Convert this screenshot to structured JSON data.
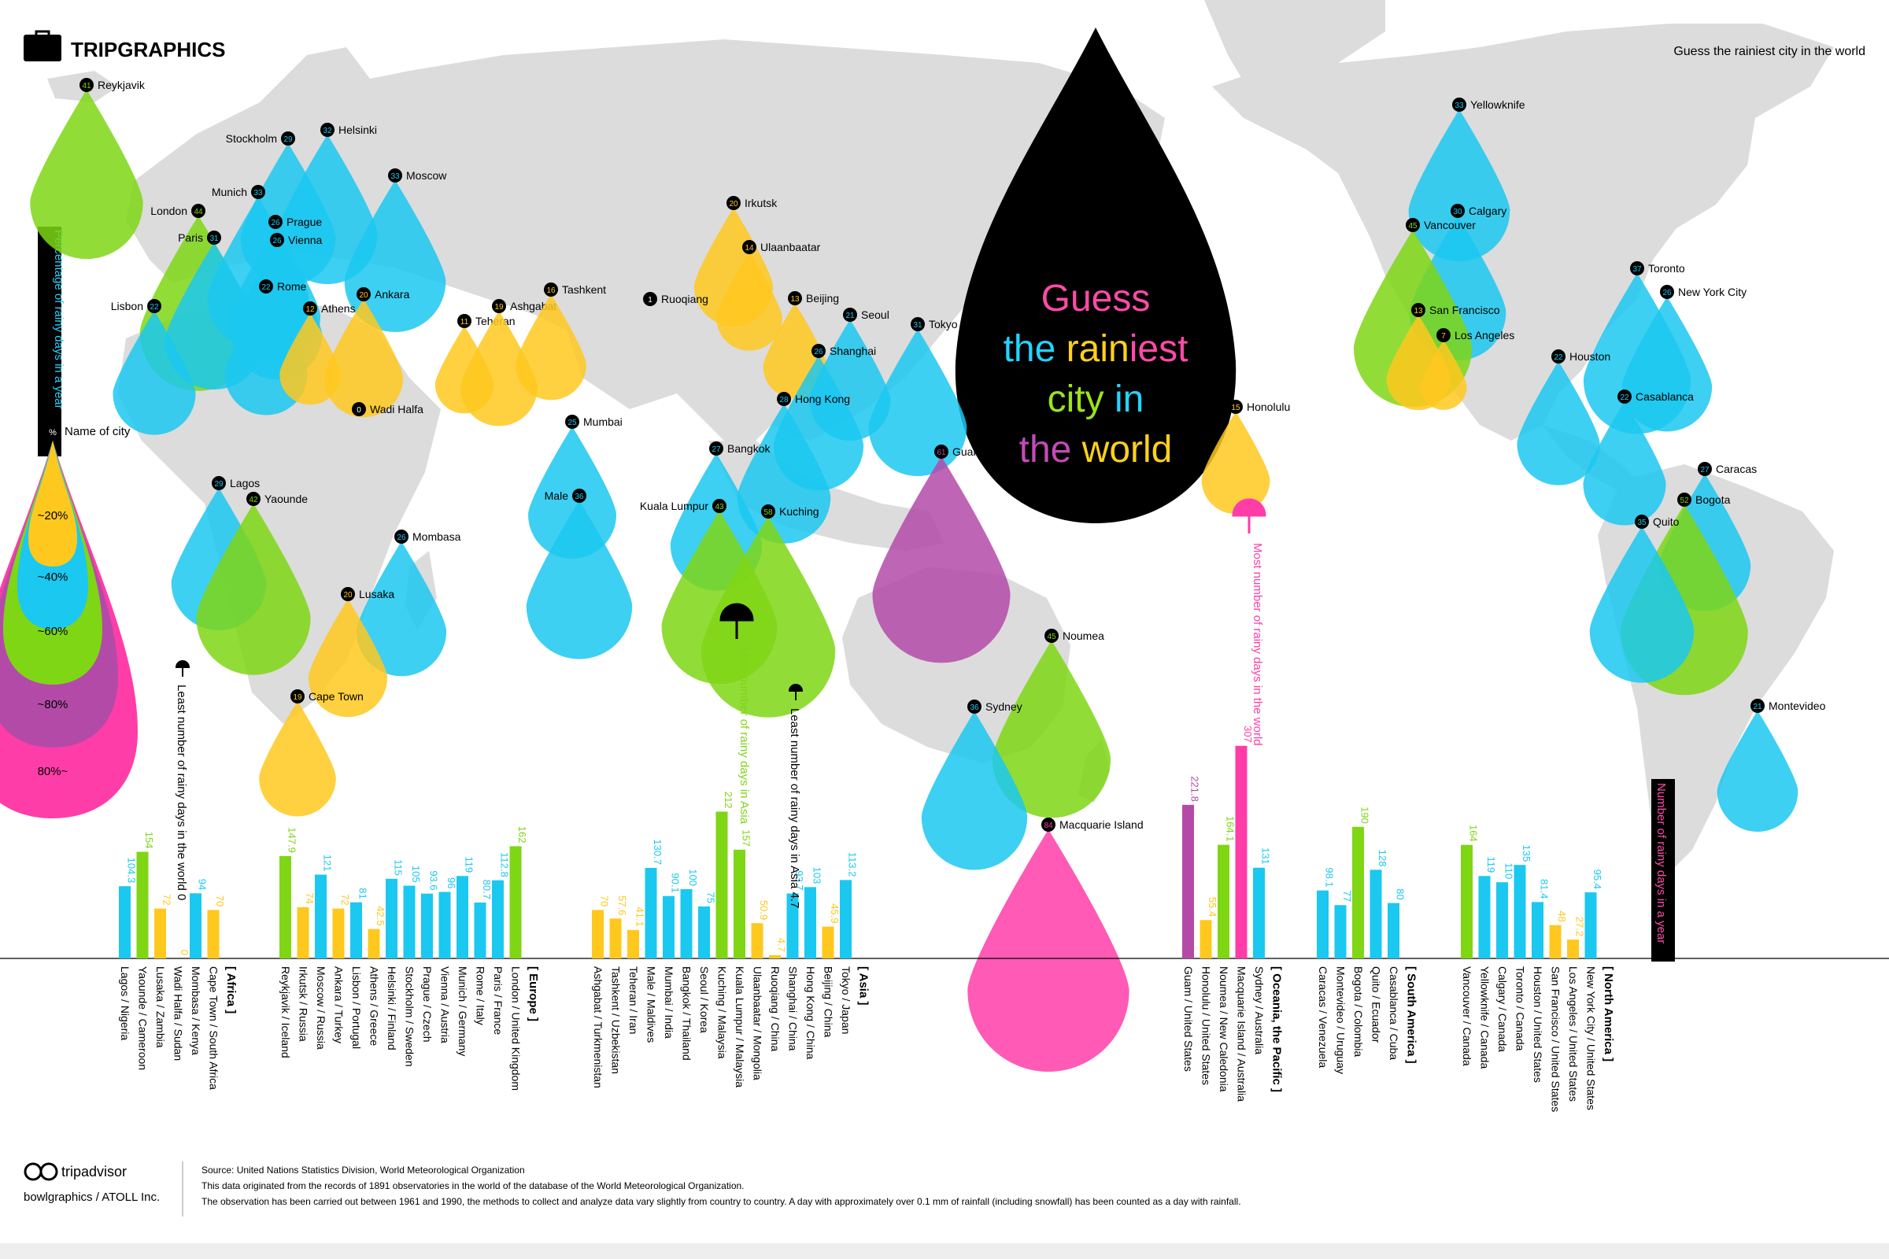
{
  "brand": {
    "name": "TRIPGRAPHICS"
  },
  "header": {
    "tagline": "Guess the rainiest city in the world"
  },
  "hero": {
    "lines": [
      [
        [
          "Guess",
          "#ff4aa8"
        ]
      ],
      [
        [
          "the ",
          "#22d3ff"
        ],
        [
          "rain",
          "#ffd11a"
        ],
        [
          "iest",
          "#ff4aa8"
        ]
      ],
      [
        [
          "city ",
          "#9be31a"
        ],
        [
          "in",
          "#22d3ff"
        ]
      ],
      [
        [
          "the ",
          "#c44ab8"
        ],
        [
          "world",
          "#ffd11a"
        ]
      ]
    ]
  },
  "legend": {
    "vertical_title": "Percentage of rainy days in a year",
    "key_badge": "%",
    "key_label": "Name of city",
    "bands": [
      "~20%",
      "~40%",
      "~60%",
      "~80%",
      "80%~"
    ]
  },
  "right_axis_title": "Number of rainy days in a year",
  "annotations": {
    "least_world": "Least number of rainy days in the world  0",
    "least_asia": "Least number of rainy days in Asia  4.7",
    "most_asia": "Most number of rainy days in Asia",
    "most_world": "Most number of rainy days in the world"
  },
  "colors": {
    "yellow": "#ffc81e",
    "cyan": "#1bc8f0",
    "green": "#7fd615",
    "purple": "#b44aa8",
    "pink": "#ff3da8",
    "black": "#000000",
    "map": "#dcdcdc"
  },
  "footer": {
    "brand": "tripadvisor",
    "credit": "bowlgraphics / ATOLL Inc.",
    "source": "Source: United Nations Statistics Division, World Meteorological Organization",
    "line1": "This data originated from the records of 1891 observatories in the world of the database of the World Meteorological Organization.",
    "line2": "The observation has been carried out between 1961 and 1990, the methods to collect and analyze data vary slightly from country to country. A day with approximately over 0.1 mm of rainfall (including snowfall) has been counted as a day with rainfall."
  },
  "chart_data": {
    "type": "bar",
    "title": "Guess the rainiest city in the world",
    "ylabel": "Number of rainy days in a year",
    "groups": [
      {
        "region": "[ Africa ]",
        "cities": [
          {
            "name": "Lagos / Nigeria",
            "value": 104.3,
            "color": "cyan"
          },
          {
            "name": "Yaounde / Cameroon",
            "value": 154,
            "color": "green"
          },
          {
            "name": "Lusaka / Zambia",
            "value": 72,
            "color": "yellow"
          },
          {
            "name": "Wadi Halfa / Sudan",
            "value": 0,
            "color": "yellow"
          },
          {
            "name": "Mombasa / Kenya",
            "value": 94,
            "color": "cyan"
          },
          {
            "name": "Cape Town / South Africa",
            "value": 70,
            "color": "yellow"
          }
        ]
      },
      {
        "region": "[ Europe ]",
        "cities": [
          {
            "name": "Reykjavik / Iceland",
            "value": 147.9,
            "color": "green"
          },
          {
            "name": "Irkutsk / Russia",
            "value": 74,
            "color": "yellow"
          },
          {
            "name": "Moscow / Russia",
            "value": 121,
            "color": "cyan"
          },
          {
            "name": "Ankara / Turkey",
            "value": 72,
            "color": "yellow"
          },
          {
            "name": "Lisbon / Portugal",
            "value": 81,
            "color": "cyan"
          },
          {
            "name": "Athens / Greece",
            "value": 42.5,
            "color": "yellow"
          },
          {
            "name": "Helsinki / Finland",
            "value": 115,
            "color": "cyan"
          },
          {
            "name": "Stockholm / Sweden",
            "value": 105,
            "color": "cyan"
          },
          {
            "name": "Prague / Czech",
            "value": 93.6,
            "color": "cyan"
          },
          {
            "name": "Vienna / Austria",
            "value": 96,
            "color": "cyan"
          },
          {
            "name": "Munich / Germany",
            "value": 119,
            "color": "cyan"
          },
          {
            "name": "Rome / Italy",
            "value": 80.7,
            "color": "cyan"
          },
          {
            "name": "Paris / France",
            "value": 112.8,
            "color": "cyan"
          },
          {
            "name": "London / United Kingdom",
            "value": 162,
            "color": "green"
          }
        ]
      },
      {
        "region": "[ Asia ]",
        "cities": [
          {
            "name": "Ashgabat / Turkmenistan",
            "value": 70,
            "color": "yellow"
          },
          {
            "name": "Tashkent / Uzbekistan",
            "value": 57.6,
            "color": "yellow"
          },
          {
            "name": "Teheran / Iran",
            "value": 41.1,
            "color": "yellow"
          },
          {
            "name": "Male / Maldives",
            "value": 130.7,
            "color": "cyan"
          },
          {
            "name": "Mumbai / India",
            "value": 90.1,
            "color": "cyan"
          },
          {
            "name": "Bangkok / Thailand",
            "value": 100,
            "color": "cyan"
          },
          {
            "name": "Seoul / Korea",
            "value": 75,
            "color": "cyan"
          },
          {
            "name": "Kuching / Malaysia",
            "value": 212,
            "color": "green"
          },
          {
            "name": "Kuala Lumpur / Malaysia",
            "value": 157,
            "color": "green"
          },
          {
            "name": "Ulaanbaatar / Mongolia",
            "value": 50.9,
            "color": "yellow"
          },
          {
            "name": "Ruoqiang / China",
            "value": 4.7,
            "color": "yellow"
          },
          {
            "name": "Shanghai / China",
            "value": 93.7,
            "color": "cyan"
          },
          {
            "name": "Hong Kong / China",
            "value": 103,
            "color": "cyan"
          },
          {
            "name": "Beijing / China",
            "value": 45.9,
            "color": "yellow"
          },
          {
            "name": "Tokyo / Japan",
            "value": 113.2,
            "color": "cyan"
          }
        ]
      },
      {
        "region": "[ Oceania, the Pacific ]",
        "cities": [
          {
            "name": "Guam / United States",
            "value": 221.8,
            "color": "purple"
          },
          {
            "name": "Honolulu / United States",
            "value": 55.4,
            "color": "yellow"
          },
          {
            "name": "Noumea / New Caledonia",
            "value": 164.1,
            "color": "green"
          },
          {
            "name": "Macquarie Island / Australia",
            "value": 307,
            "color": "pink"
          },
          {
            "name": "Sydney / Australia",
            "value": 131,
            "color": "cyan"
          }
        ]
      },
      {
        "region": "[ South America ]",
        "cities": [
          {
            "name": "Caracas / Venezuela",
            "value": 98.1,
            "color": "cyan"
          },
          {
            "name": "Montevideo / Uruguay",
            "value": 77,
            "color": "cyan"
          },
          {
            "name": "Bogota / Colombia",
            "value": 190,
            "color": "green"
          },
          {
            "name": "Quito / Ecuador",
            "value": 128,
            "color": "cyan"
          },
          {
            "name": "Casablanca / Cuba",
            "value": 80,
            "color": "cyan"
          }
        ]
      },
      {
        "region": "[ North America ]",
        "cities": [
          {
            "name": "Vancouver / Canada",
            "value": 164,
            "color": "green"
          },
          {
            "name": "Yellowknife / Canada",
            "value": 119,
            "color": "cyan"
          },
          {
            "name": "Calgary / Canada",
            "value": 110,
            "color": "cyan"
          },
          {
            "name": "Toronto / Canada",
            "value": 135,
            "color": "cyan"
          },
          {
            "name": "Houston / United States",
            "value": 81.4,
            "color": "cyan"
          },
          {
            "name": "San Francisco / United States",
            "value": 48,
            "color": "yellow"
          },
          {
            "name": "Los Angeles / United States",
            "value": 27.2,
            "color": "yellow"
          },
          {
            "name": "New York City / United States",
            "value": 95.4,
            "color": "cyan"
          }
        ]
      }
    ],
    "map_drops": [
      {
        "name": "Reykjavik",
        "pct": 41,
        "color": "green"
      },
      {
        "name": "Stockholm",
        "pct": 29,
        "color": "cyan"
      },
      {
        "name": "Helsinki",
        "pct": 32,
        "color": "cyan"
      },
      {
        "name": "Moscow",
        "pct": 33,
        "color": "cyan"
      },
      {
        "name": "London",
        "pct": 44,
        "color": "green"
      },
      {
        "name": "Munich",
        "pct": 33,
        "color": "cyan"
      },
      {
        "name": "Paris",
        "pct": 31,
        "color": "cyan"
      },
      {
        "name": "Prague",
        "pct": 26,
        "color": "cyan"
      },
      {
        "name": "Vienna",
        "pct": 26,
        "color": "cyan"
      },
      {
        "name": "Rome",
        "pct": 22,
        "color": "cyan"
      },
      {
        "name": "Lisbon",
        "pct": 22,
        "color": "cyan"
      },
      {
        "name": "Athens",
        "pct": 12,
        "color": "yellow"
      },
      {
        "name": "Ankara",
        "pct": 20,
        "color": "yellow"
      },
      {
        "name": "Teheran",
        "pct": 11,
        "color": "yellow"
      },
      {
        "name": "Ashgabat",
        "pct": 19,
        "color": "yellow"
      },
      {
        "name": "Tashkent",
        "pct": 16,
        "color": "yellow"
      },
      {
        "name": "Irkutsk",
        "pct": 20,
        "color": "yellow"
      },
      {
        "name": "Ulaanbaatar",
        "pct": 14,
        "color": "yellow"
      },
      {
        "name": "Ruoqiang",
        "pct": 1,
        "color": "black"
      },
      {
        "name": "Beijing",
        "pct": 13,
        "color": "yellow"
      },
      {
        "name": "Seoul",
        "pct": 21,
        "color": "cyan"
      },
      {
        "name": "Shanghai",
        "pct": 26,
        "color": "cyan"
      },
      {
        "name": "Tokyo",
        "pct": 31,
        "color": "cyan"
      },
      {
        "name": "Hong Kong",
        "pct": 28,
        "color": "cyan"
      },
      {
        "name": "Wadi Halfa",
        "pct": 0,
        "color": "black"
      },
      {
        "name": "Mumbai",
        "pct": 25,
        "color": "cyan"
      },
      {
        "name": "Bangkok",
        "pct": 27,
        "color": "cyan"
      },
      {
        "name": "Male",
        "pct": 36,
        "color": "cyan"
      },
      {
        "name": "Kuala Lumpur",
        "pct": 43,
        "color": "green"
      },
      {
        "name": "Kuching",
        "pct": 58,
        "color": "green"
      },
      {
        "name": "Guam",
        "pct": 61,
        "color": "purple"
      },
      {
        "name": "Lagos",
        "pct": 29,
        "color": "cyan"
      },
      {
        "name": "Yaounde",
        "pct": 42,
        "color": "green"
      },
      {
        "name": "Mombasa",
        "pct": 26,
        "color": "cyan"
      },
      {
        "name": "Lusaka",
        "pct": 20,
        "color": "yellow"
      },
      {
        "name": "Cape Town",
        "pct": 19,
        "color": "yellow"
      },
      {
        "name": "Noumea",
        "pct": 45,
        "color": "green"
      },
      {
        "name": "Sydney",
        "pct": 36,
        "color": "cyan"
      },
      {
        "name": "Macquarie Island",
        "pct": 84,
        "color": "pink"
      },
      {
        "name": "Honolulu",
        "pct": 15,
        "color": "yellow"
      },
      {
        "name": "Yellowknife",
        "pct": 33,
        "color": "cyan"
      },
      {
        "name": "Calgary",
        "pct": 30,
        "color": "cyan"
      },
      {
        "name": "Vancouver",
        "pct": 45,
        "color": "green"
      },
      {
        "name": "San Francisco",
        "pct": 13,
        "color": "yellow"
      },
      {
        "name": "Los Angeles",
        "pct": 7,
        "color": "yellow"
      },
      {
        "name": "Toronto",
        "pct": 37,
        "color": "cyan"
      },
      {
        "name": "New York City",
        "pct": 26,
        "color": "cyan"
      },
      {
        "name": "Houston",
        "pct": 22,
        "color": "cyan"
      },
      {
        "name": "Casablanca",
        "pct": 22,
        "color": "cyan"
      },
      {
        "name": "Caracas",
        "pct": 27,
        "color": "cyan"
      },
      {
        "name": "Bogota",
        "pct": 52,
        "color": "green"
      },
      {
        "name": "Quito",
        "pct": 35,
        "color": "cyan"
      },
      {
        "name": "Montevideo",
        "pct": 21,
        "color": "cyan"
      }
    ]
  }
}
